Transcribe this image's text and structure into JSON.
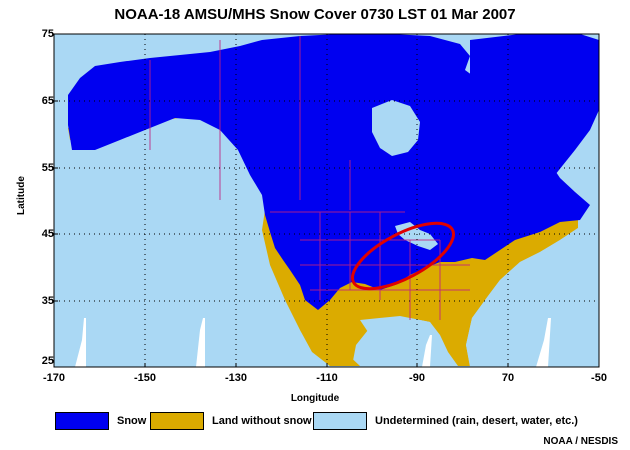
{
  "title": "NOAA-18 AMSU/MHS Snow Cover  0730 LST  01 Mar 2007",
  "axes": {
    "ylabel": "Latitude",
    "xlabel": "Longitude",
    "yticks": [
      "75",
      "65",
      "55",
      "45",
      "35",
      "25"
    ],
    "xticks": [
      "-170",
      "-150",
      "-130",
      "-110",
      "-90",
      "70",
      "-50"
    ]
  },
  "legend": [
    {
      "label": "Snow",
      "color": "#0000f0"
    },
    {
      "label": "Land without snow",
      "color": "#dbab00"
    },
    {
      "label": "Undetermined (rain, desert, water, etc.)",
      "color": "#aad8f4"
    }
  ],
  "colors": {
    "snow": "#0000f0",
    "land": "#dbab00",
    "water": "#aad8f4",
    "borders": "#c02080",
    "highlight": "#e00000"
  },
  "credit": "NOAA / NESDIS"
}
